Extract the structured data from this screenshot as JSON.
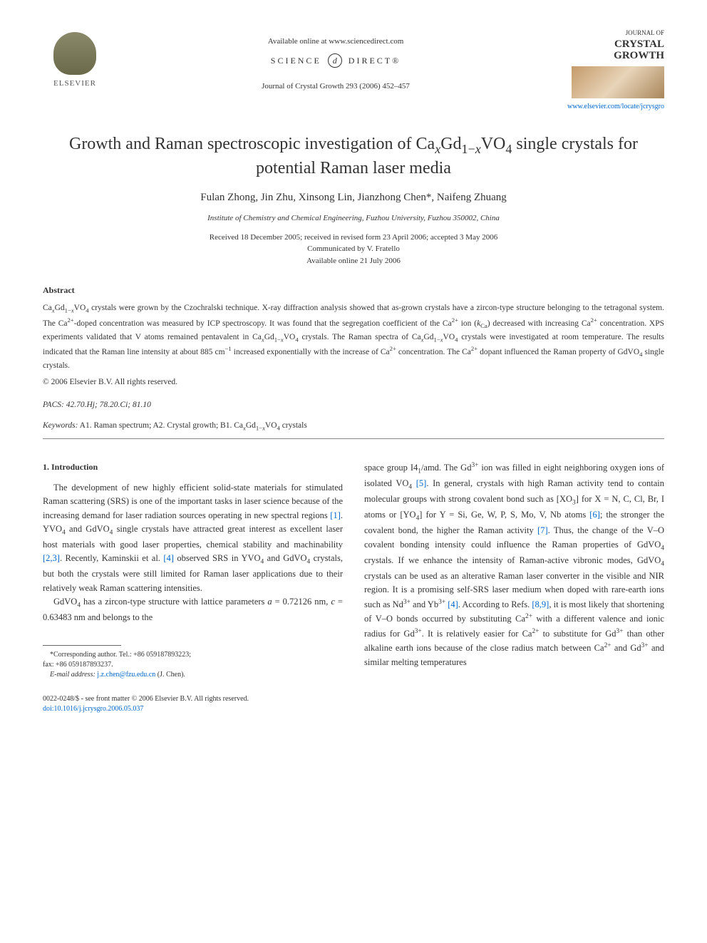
{
  "header": {
    "publisher_name": "ELSEVIER",
    "available_online": "Available online at www.sciencedirect.com",
    "science_prefix": "SCIENCE",
    "science_suffix": "DIRECT®",
    "journal_ref": "Journal of Crystal Growth 293 (2006) 452–457",
    "journal_logo_label": "JOURNAL OF",
    "journal_logo_name": "CRYSTAL GROWTH",
    "journal_link": "www.elsevier.com/locate/jcrysgro"
  },
  "article": {
    "title_html": "Growth and Raman spectroscopic investigation of Ca<sub><i>x</i></sub>Gd<sub>1−<i>x</i></sub>VO<sub>4</sub> single crystals for potential Raman laser media",
    "authors_html": "Fulan Zhong, Jin Zhu, Xinsong Lin, Jianzhong Chen*, Naifeng Zhuang",
    "affiliation": "Institute of Chemistry and Chemical Engineering, Fuzhou University, Fuzhou 350002, China",
    "dates_line1": "Received 18 December 2005; received in revised form 23 April 2006; accepted 3 May 2006",
    "dates_line2": "Communicated by V. Fratello",
    "dates_line3": "Available online 21 July 2006"
  },
  "abstract": {
    "heading": "Abstract",
    "text_html": "Ca<sub><i>x</i></sub>Gd<sub>1−<i>x</i></sub>VO<sub>4</sub> crystals were grown by the Czochralski technique. X-ray diffraction analysis showed that as-grown crystals have a zircon-type structure belonging to the tetragonal system. The Ca<sup>2+</sup>-doped concentration was measured by ICP spectroscopy. It was found that the segregation coefficient of the Ca<sup>2+</sup> ion (<i>k</i><sub>Ca</sub>) decreased with increasing Ca<sup>2+</sup> concentration. XPS experiments validated that V atoms remained pentavalent in Ca<sub><i>x</i></sub>Gd<sub>1−<i>x</i></sub>VO<sub>4</sub> crystals. The Raman spectra of Ca<sub><i>x</i></sub>Gd<sub>1−<i>x</i></sub>VO<sub>4</sub> crystals were investigated at room temperature. The results indicated that the Raman line intensity at about 885 cm<sup>−1</sup> increased exponentially with the increase of Ca<sup>2+</sup> concentration. The Ca<sup>2+</sup> dopant influenced the Raman property of GdVO<sub>4</sub> single crystals.",
    "copyright": "© 2006 Elsevier B.V. All rights reserved.",
    "pacs_label": "PACS:",
    "pacs_values": "42.70.Hj; 78.20.Ci; 81.10",
    "keywords_label": "Keywords:",
    "keywords_values_html": "A1. Raman spectrum; A2. Crystal growth; B1. Ca<sub><i>x</i></sub>Gd<sub>1−<i>x</i></sub>VO<sub>4</sub> crystals"
  },
  "introduction": {
    "heading": "1. Introduction",
    "para1_html": "The development of new highly efficient solid-state materials for stimulated Raman scattering (SRS) is one of the important tasks in laser science because of the increasing demand for laser radiation sources operating in new spectral regions <span class=\"ref-link\">[1]</span>. YVO<sub>4</sub> and GdVO<sub>4</sub> single crystals have attracted great interest as excellent laser host materials with good laser properties, chemical stability and machinability <span class=\"ref-link\">[2,3]</span>. Recently, Kaminskii et al. <span class=\"ref-link\">[4]</span> observed SRS in YVO<sub>4</sub> and GdVO<sub>4</sub> crystals, but both the crystals were still limited for Raman laser applications due to their relatively weak Raman scattering intensities.",
    "para2_html": "GdVO<sub>4</sub> has a zircon-type structure with lattice parameters <i>a</i> = 0.72126 nm, <i>c</i> = 0.63483 nm and belongs to the",
    "col2_html": "space group I4<sub>1</sub>/amd. The Gd<sup>3+</sup> ion was filled in eight neighboring oxygen ions of isolated VO<sub>4</sub> <span class=\"ref-link\">[5]</span>. In general, crystals with high Raman activity tend to contain molecular groups with strong covalent bond such as [XO<sub>3</sub>] for X = N, C, Cl, Br, I atoms or [YO<sub>4</sub>] for Y = Si, Ge, W, P, S, Mo, V, Nb atoms <span class=\"ref-link\">[6]</span>; the stronger the covalent bond, the higher the Raman activity <span class=\"ref-link\">[7]</span>. Thus, the change of the V–O covalent bonding intensity could influence the Raman properties of GdVO<sub>4</sub> crystals. If we enhance the intensity of Raman-active vibronic modes, GdVO<sub>4</sub> crystals can be used as an alterative Raman laser converter in the visible and NIR region. It is a promising self-SRS laser medium when doped with rare-earth ions such as Nd<sup>3+</sup> and Yb<sup>3+</sup> <span class=\"ref-link\">[4]</span>. According to Refs. <span class=\"ref-link\">[8,9]</span>, it is most likely that shortening of V–O bonds occurred by substituting Ca<sup>2+</sup> with a different valence and ionic radius for Gd<sup>3+</sup>. It is relatively easier for Ca<sup>2+</sup> to substitute for Gd<sup>3+</sup> than other alkaline earth ions because of the close radius match between Ca<sup>2+</sup> and Gd<sup>3+</sup> and similar melting temperatures"
  },
  "footnote": {
    "corresponding": "*Corresponding author. Tel.: +86 059187893223;",
    "fax": "fax: +86 059187893237.",
    "email_label": "E-mail address:",
    "email_value": "j.z.chen@fzu.edu.cn",
    "email_name": "(J. Chen)."
  },
  "footer": {
    "line1": "0022-0248/$ - see front matter © 2006 Elsevier B.V. All rights reserved.",
    "doi": "doi:10.1016/j.jcrysgro.2006.05.037"
  }
}
